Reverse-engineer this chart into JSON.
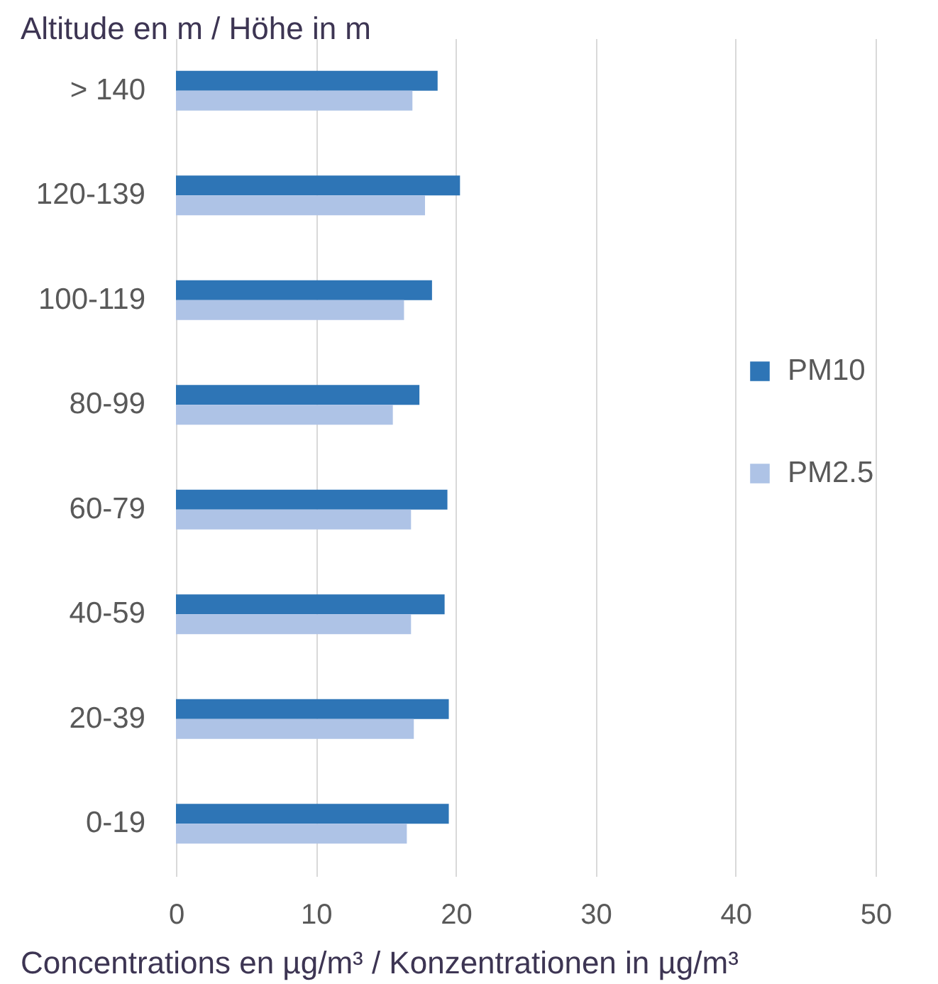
{
  "chart_data": {
    "type": "bar",
    "orientation": "horizontal",
    "ylabel": "Altitude en m / Höhe in m",
    "xlabel": "Concentrations en µg/m³ / Konzentrationen in µg/m³",
    "categories": [
      "> 140",
      "120-139",
      "100-119",
      "80-99",
      "60-79",
      "40-59",
      "20-39",
      "0-19"
    ],
    "series": [
      {
        "name": "PM10",
        "color": "#2e75b6",
        "values": [
          18.7,
          20.3,
          18.3,
          17.4,
          19.4,
          19.2,
          19.5,
          19.5
        ]
      },
      {
        "name": "PM2.5",
        "color": "#aec3e6",
        "values": [
          16.9,
          17.8,
          16.3,
          15.5,
          16.8,
          16.8,
          17.0,
          16.5
        ]
      }
    ],
    "xlim": [
      0,
      50
    ],
    "xticks": [
      0,
      10,
      20,
      30,
      40,
      50
    ],
    "grid": "x",
    "legend": "right"
  }
}
